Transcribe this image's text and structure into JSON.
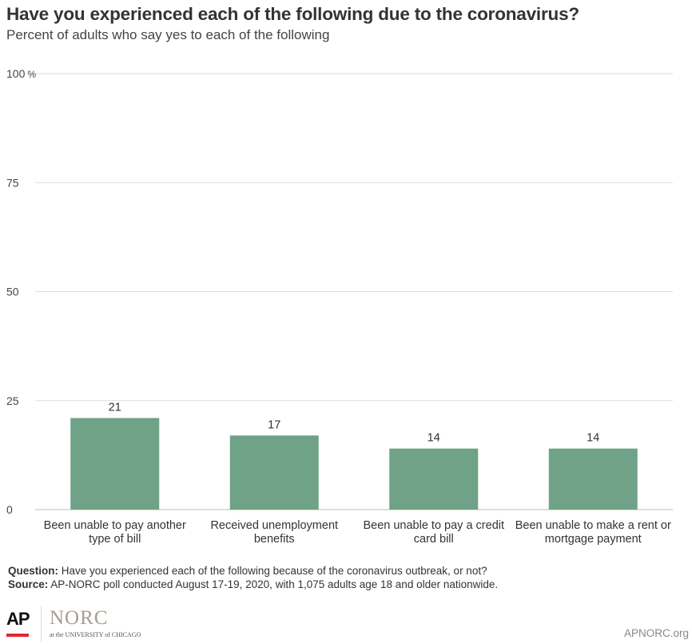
{
  "header": {
    "title": "Have you experienced each of the following due to the coronavirus?",
    "subtitle": "Percent of adults who say yes to each of the following"
  },
  "chart_data": {
    "type": "bar",
    "categories": [
      [
        "Been unable to pay another",
        "type of bill"
      ],
      [
        "Received unemployment",
        "benefits"
      ],
      [
        "Been unable to pay a credit",
        "card bill"
      ],
      [
        "Been unable to make a rent or",
        "mortgage payment"
      ]
    ],
    "values": [
      21,
      17,
      14,
      14
    ],
    "value_labels": [
      "21",
      "17",
      "14",
      "14"
    ],
    "ylim": [
      0,
      100
    ],
    "yticks": [
      0,
      25,
      50,
      75,
      100
    ],
    "ytick_labels": [
      "0",
      "25",
      "50",
      "75",
      "100"
    ],
    "y_unit": "%",
    "grid": true,
    "colors": {
      "bar": "#6fa287",
      "grid": "#dddddd",
      "axis": "#bbbbbb"
    }
  },
  "footer": {
    "question_label": "Question:",
    "question_text": " Have you experienced each of the following because of the coronavirus outbreak, or not?",
    "source_label": "Source:",
    "source_text": " AP-NORC poll conducted August 17-19, 2020, with 1,075 adults age 18 and older nationwide.",
    "ap_logo_text": "AP",
    "norc_logo_text": "NORC",
    "norc_subtext": "at the UNIVERSITY of CHICAGO",
    "website": "APNORC.org"
  }
}
